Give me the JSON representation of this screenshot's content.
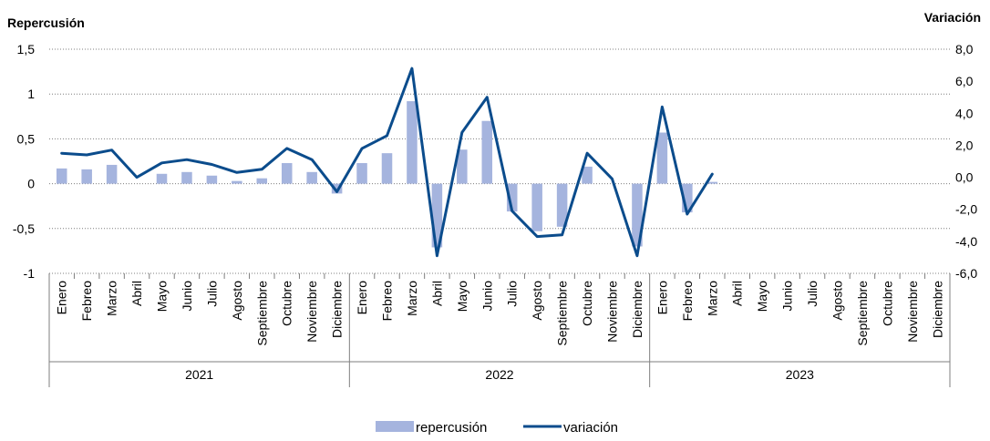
{
  "chart_data": {
    "type": "bar+line",
    "left_axis_title": "Repercusión",
    "right_axis_title": "Variación",
    "left_ylim": [
      -1,
      1.5
    ],
    "left_ticks": [
      "1,5",
      "1",
      "0,5",
      "0",
      "-0,5",
      "-1"
    ],
    "right_ylim": [
      -6,
      8
    ],
    "right_ticks": [
      "8,0",
      "6,0",
      "4,0",
      "2,0",
      "0,0",
      "-2,0",
      "-4,0",
      "-6,0"
    ],
    "months": [
      "Enero",
      "Febreo",
      "Marzo",
      "Abril",
      "Mayo",
      "Junio",
      "Julio",
      "Agosto",
      "Septiembre",
      "Octubre",
      "Noviembre",
      "Diciembre",
      "Enero",
      "Febreo",
      "Marzo",
      "Abril",
      "Mayo",
      "Junio",
      "Julio",
      "Agosto",
      "Septiembre",
      "Octubre",
      "Noviembre",
      "Diciembre",
      "Enero",
      "Febreo",
      "Marzo",
      "Abril",
      "Mayo",
      "Junio",
      "Julio",
      "Agosto",
      "Septiembre",
      "Octubre",
      "Noviembre",
      "Diciembre"
    ],
    "years": [
      "2021",
      "2022",
      "2023"
    ],
    "series": [
      {
        "name": "repercusión",
        "kind": "bar",
        "axis": "left",
        "color": "#a5b4de",
        "values": [
          0.17,
          0.16,
          0.21,
          0.0,
          0.11,
          0.13,
          0.09,
          0.03,
          0.06,
          0.23,
          0.13,
          -0.11,
          0.23,
          0.34,
          0.92,
          -0.71,
          0.38,
          0.7,
          -0.31,
          -0.53,
          -0.48,
          0.19,
          0.0,
          -0.7,
          0.57,
          -0.32,
          0.02,
          null,
          null,
          null,
          null,
          null,
          null,
          null,
          null,
          null
        ]
      },
      {
        "name": "variación",
        "kind": "line",
        "axis": "right",
        "color": "#0b4c8c",
        "values": [
          1.5,
          1.4,
          1.7,
          0.0,
          0.9,
          1.1,
          0.8,
          0.3,
          0.5,
          1.8,
          1.1,
          -0.9,
          1.8,
          2.6,
          6.8,
          -4.9,
          2.8,
          5.0,
          -2.1,
          -3.7,
          -3.6,
          1.5,
          -0.1,
          -4.9,
          4.4,
          -2.3,
          0.2,
          null,
          null,
          null,
          null,
          null,
          null,
          null,
          null,
          null
        ]
      }
    ],
    "legend_position": "bottom",
    "grid": "horizontal-dotted"
  }
}
